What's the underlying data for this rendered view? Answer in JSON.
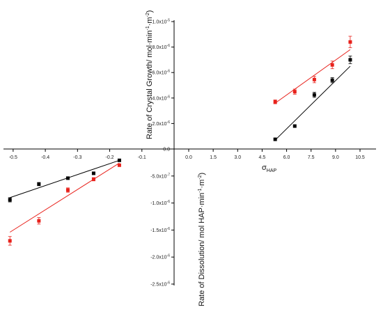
{
  "chart_data": {
    "type": "scatter",
    "title": "",
    "x_axis": {
      "label": "σ",
      "label_sub": "HAP",
      "ticks_negative": [
        "-0.5",
        "-0.4",
        "-0.3",
        "-0.2",
        "-0.1"
      ],
      "ticks_positive": [
        "0.0",
        "1.5",
        "3.0",
        "4.5",
        "6.0",
        "7.5",
        "9.0",
        "10.5"
      ]
    },
    "y_axis_top": {
      "label": "Rate of Crystal Growth/ mol·min",
      "label_sup1": "-1",
      "label_mid": "·m",
      "label_sup2": "-2",
      "label_end": ")",
      "ticks": [
        "0.0",
        "2.0x10",
        "4.0x10",
        "6.0x10",
        "8.0x10",
        "1.0x10"
      ],
      "tick_exponents": [
        "",
        "-6",
        "-6",
        "-6",
        "-6",
        "-5"
      ],
      "tick_values": [
        0,
        2e-06,
        4e-06,
        6e-06,
        8e-06,
        1e-05
      ],
      "ylim": [
        0,
        1e-05
      ],
      "xlim": [
        0,
        10.5
      ]
    },
    "y_axis_bottom": {
      "label": "Rate of Dissolution/ mol HAP·min",
      "label_sup1": "-1",
      "label_mid": "·m",
      "label_sup2": "-2",
      "label_end": ")",
      "ticks": [
        "-5.0x10",
        "-1.0x10",
        "-1.5x10",
        "-2.0x10",
        "-2.5x10"
      ],
      "tick_exponents": [
        "-7",
        "-6",
        "-6",
        "-6",
        "-6"
      ],
      "tick_values": [
        -5e-07,
        -1e-06,
        -1.5e-06,
        -2e-06,
        -2.5e-06
      ],
      "ylim": [
        -2.5e-06,
        0
      ],
      "xlim": [
        -0.53,
        0
      ]
    },
    "series": [
      {
        "color": "#000000",
        "growth_points": [
          {
            "x": 5.3,
            "y": 7.6e-07,
            "err": 0
          },
          {
            "x": 6.5,
            "y": 1.8e-06,
            "err": 0
          },
          {
            "x": 7.7,
            "y": 4.25e-06,
            "err": 2e-07
          },
          {
            "x": 8.8,
            "y": 5.4e-06,
            "err": 2e-07
          },
          {
            "x": 9.9,
            "y": 7e-06,
            "err": 3e-07
          }
        ],
        "growth_fit": [
          [
            5.3,
            7e-07
          ],
          [
            9.9,
            6.5e-06
          ]
        ],
        "dissolution_points": [
          {
            "x": -0.51,
            "y": -9.4e-07,
            "err": 4e-08
          },
          {
            "x": -0.42,
            "y": -6.5e-07,
            "err": 3e-08
          },
          {
            "x": -0.33,
            "y": -5.4e-07,
            "err": 2e-08
          },
          {
            "x": -0.25,
            "y": -4.5e-07,
            "err": 2e-08
          },
          {
            "x": -0.17,
            "y": -2.1e-07,
            "err": 0
          }
        ],
        "dissolution_fit": [
          [
            -0.51,
            -9e-07
          ],
          [
            -0.17,
            -2.1e-07
          ]
        ]
      },
      {
        "color": "#e8211b",
        "growth_points": [
          {
            "x": 5.3,
            "y": 3.7e-06,
            "err": 1.5e-07
          },
          {
            "x": 6.5,
            "y": 4.5e-06,
            "err": 2e-07
          },
          {
            "x": 7.7,
            "y": 5.45e-06,
            "err": 2.5e-07
          },
          {
            "x": 8.8,
            "y": 6.6e-06,
            "err": 3e-07
          },
          {
            "x": 9.9,
            "y": 8.4e-06,
            "err": 4.5e-07
          }
        ],
        "growth_fit": [
          [
            5.3,
            3.6e-06
          ],
          [
            9.9,
            7.8e-06
          ]
        ],
        "dissolution_points": [
          {
            "x": -0.51,
            "y": -1.7e-06,
            "err": 8e-08
          },
          {
            "x": -0.42,
            "y": -1.33e-06,
            "err": 6e-08
          },
          {
            "x": -0.33,
            "y": -7.6e-07,
            "err": 4e-08
          },
          {
            "x": -0.25,
            "y": -5.6e-07,
            "err": 3e-08
          },
          {
            "x": -0.17,
            "y": -3e-07,
            "err": 0
          }
        ],
        "dissolution_fit": [
          [
            -0.51,
            -1.54e-06
          ],
          [
            -0.17,
            -2.6e-07
          ]
        ]
      }
    ]
  }
}
